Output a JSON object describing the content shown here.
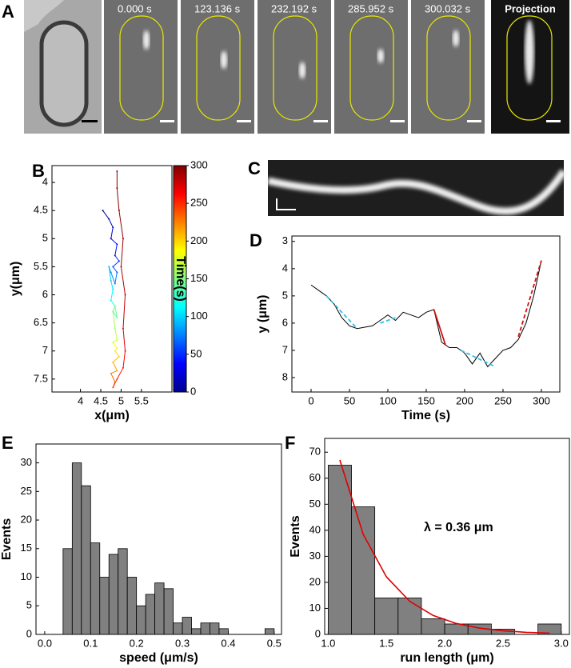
{
  "panel_a": {
    "panel_label": "A",
    "frames": [
      "0.000 s",
      "123.136 s",
      "232.192 s",
      "285.952 s",
      "300.032 s"
    ],
    "projection": "Projection"
  },
  "panel_c": {
    "panel_label": "C"
  },
  "chart_data": [
    {
      "type": "trajectory",
      "panel_label": "B",
      "xlabel": "x(μm)",
      "ylabel": "y(μm)",
      "x": [
        4.55,
        4.7,
        4.8,
        4.75,
        4.9,
        4.85,
        4.95,
        4.8,
        4.9,
        4.85,
        4.75,
        4.7,
        4.75,
        4.8,
        4.75,
        4.85,
        4.8,
        4.9,
        4.85,
        4.8,
        4.85,
        4.9,
        4.8,
        4.9,
        4.85,
        4.95,
        4.8,
        4.9,
        4.75,
        4.85,
        4.8,
        4.9,
        5.05,
        5.1,
        5.05,
        5.1,
        5.0,
        5.05,
        4.95,
        4.9,
        4.9
      ],
      "values": [
        4.5,
        4.65,
        4.8,
        5.0,
        5.1,
        5.3,
        5.4,
        5.5,
        5.6,
        5.8,
        5.6,
        5.5,
        5.75,
        5.9,
        6.1,
        6.2,
        6.3,
        6.4,
        6.2,
        6.3,
        6.6,
        6.8,
        6.85,
        6.95,
        7.0,
        7.1,
        7.2,
        7.35,
        7.4,
        7.55,
        7.65,
        7.5,
        7.3,
        7.0,
        6.6,
        6.0,
        5.5,
        5.0,
        4.5,
        4.1,
        3.8
      ],
      "time": [
        0,
        8,
        16,
        24,
        32,
        40,
        48,
        56,
        64,
        72,
        80,
        88,
        96,
        104,
        112,
        120,
        128,
        136,
        144,
        152,
        160,
        168,
        176,
        184,
        192,
        200,
        208,
        216,
        224,
        232,
        240,
        248,
        256,
        264,
        272,
        280,
        286,
        290,
        294,
        297,
        300
      ],
      "xlim": [
        3.3,
        6.25
      ],
      "xticks": [
        4,
        4.5,
        5,
        5.5
      ],
      "ylim": [
        3.7,
        7.73
      ],
      "yticks": [
        4,
        4.5,
        5,
        5.5,
        6,
        6.5,
        7,
        7.5
      ],
      "y_inverted": true,
      "colorbar_label": "Time(s)",
      "clim": [
        0,
        300
      ],
      "cticks": [
        0,
        50,
        100,
        150,
        200,
        250,
        300
      ],
      "colormap": "jet"
    },
    {
      "type": "line",
      "panel_label": "D",
      "xlabel": "Time (s)",
      "ylabel": "y (μm)",
      "series": [
        {
          "color": "#000000",
          "dash": false,
          "x": [
            0,
            10,
            20,
            30,
            40,
            50,
            60,
            70,
            80,
            90,
            100,
            110,
            120,
            130,
            140,
            150,
            160,
            170,
            180,
            190,
            200,
            210,
            220,
            230,
            240,
            250,
            260,
            270,
            280,
            290,
            300
          ],
          "values": [
            4.6,
            4.8,
            5.0,
            5.3,
            5.8,
            6.1,
            6.2,
            6.15,
            6.1,
            5.9,
            5.7,
            5.9,
            5.6,
            5.7,
            5.8,
            5.6,
            5.5,
            6.7,
            6.9,
            6.9,
            7.1,
            7.5,
            7.1,
            7.6,
            7.3,
            7.0,
            6.9,
            6.6,
            6.0,
            5.0,
            3.7
          ]
        },
        {
          "color": "#30c0e0",
          "dash": true,
          "x": [
            20,
            60
          ],
          "values": [
            5.0,
            6.2
          ]
        },
        {
          "color": "#30c0e0",
          "dash": true,
          "x": [
            90,
            110
          ],
          "values": [
            6.0,
            5.8
          ]
        },
        {
          "color": "#d01010",
          "dash": false,
          "x": [
            160,
            175
          ],
          "values": [
            5.5,
            6.8
          ]
        },
        {
          "color": "#30c0e0",
          "dash": true,
          "x": [
            195,
            240
          ],
          "values": [
            7.0,
            7.6
          ]
        },
        {
          "color": "#d01010",
          "dash": true,
          "x": [
            270,
            300
          ],
          "values": [
            6.5,
            3.7
          ]
        }
      ],
      "xlim": [
        -25,
        324
      ],
      "xticks": [
        0,
        50,
        100,
        150,
        200,
        250,
        300
      ],
      "ylim": [
        2.8,
        8.53
      ],
      "yticks": [
        3,
        4,
        5,
        6,
        7,
        8
      ],
      "y_inverted": true
    },
    {
      "type": "histogram",
      "panel_label": "E",
      "xlabel": "speed (μm/s)",
      "ylabel": "Events",
      "color": "#808080",
      "bins": [
        0.04,
        0.06,
        0.08,
        0.1,
        0.12,
        0.14,
        0.16,
        0.18,
        0.2,
        0.22,
        0.24,
        0.26,
        0.28,
        0.3,
        0.32,
        0.34,
        0.36,
        0.38,
        0.4,
        0.42,
        0.44,
        0.46,
        0.48,
        0.5
      ],
      "values": [
        15,
        30,
        26,
        16,
        10,
        14,
        15,
        10,
        5,
        7,
        9,
        8,
        2,
        3,
        1,
        2,
        2,
        1,
        0,
        0,
        0,
        0,
        1
      ],
      "xlim": [
        -0.019,
        0.516
      ],
      "xticks": [
        {
          "value": 0,
          "label": "0.0"
        },
        0.1,
        0.2,
        0.3,
        0.4,
        0.5
      ],
      "ylim": [
        0,
        33.3
      ],
      "yticks": [
        0,
        5,
        10,
        15,
        20,
        25,
        30
      ]
    },
    {
      "type": "histogram",
      "panel_label": "F",
      "xlabel": "run length (μm)",
      "ylabel": "Events",
      "color": "#808080",
      "bins": [
        1.0,
        1.2,
        1.4,
        1.6,
        1.8,
        2.0,
        2.2,
        2.4,
        2.6,
        2.8,
        3.0
      ],
      "values": [
        65,
        49,
        14,
        14,
        6,
        4,
        4,
        2,
        0,
        4
      ],
      "fit": {
        "color": "#e00000",
        "x": [
          1.1,
          1.3,
          1.5,
          1.7,
          1.9,
          2.1,
          2.3,
          2.5,
          2.7,
          2.9
        ],
        "values": [
          67,
          38.5,
          22.1,
          12.7,
          7.3,
          4.2,
          2.4,
          1.4,
          0.8,
          0.5
        ]
      },
      "annotation": "λ = 0.36 μm",
      "xlim": [
        0.97,
        3.07
      ],
      "xticks": [
        {
          "value": 1,
          "label": "1.0"
        },
        1.5,
        {
          "value": 2,
          "label": "2.0"
        },
        2.5,
        {
          "value": 3,
          "label": "3.0"
        }
      ],
      "ylim": [
        0,
        75.3
      ],
      "yticks": [
        0,
        10,
        20,
        30,
        40,
        50,
        60,
        70
      ]
    }
  ]
}
